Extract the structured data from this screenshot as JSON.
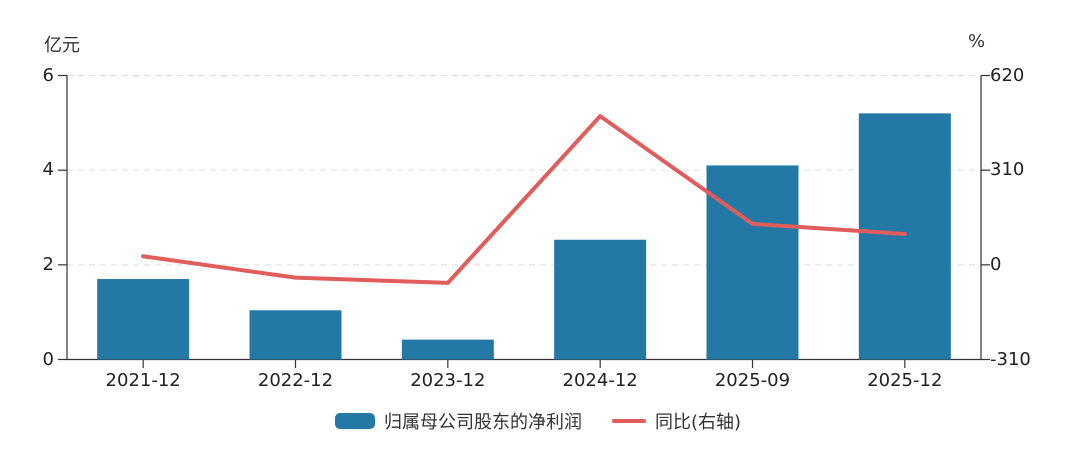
{
  "chart_data": {
    "type": "bar",
    "subtype": "bar+line dual axis",
    "categories": [
      "2021-12",
      "2022-12",
      "2023-12",
      "2024-12",
      "2025-09",
      "2025-12"
    ],
    "series": [
      {
        "name": "归属母公司股东的净利润",
        "type": "bar",
        "axis": "left",
        "color": "#2478a6",
        "values": [
          1.7,
          1.04,
          0.42,
          2.53,
          4.1,
          5.2
        ]
      },
      {
        "name": "同比(右轴)",
        "type": "line",
        "axis": "right",
        "color": "#e05d5b",
        "values": [
          28,
          -42,
          -59,
          487,
          134,
          101
        ]
      }
    ],
    "left_axis": {
      "label": "亿元",
      "min": 0,
      "max": 6,
      "ticks": [
        0,
        2,
        4,
        6
      ]
    },
    "right_axis": {
      "label": "%",
      "min": -310,
      "max": 620,
      "ticks": [
        -310,
        0,
        310,
        620
      ]
    },
    "grid": "horizontal dashed gridlines at shared tick rows",
    "grid_color": "#dddddd",
    "axis_color": "#333333",
    "legend_position": "bottom-center"
  }
}
